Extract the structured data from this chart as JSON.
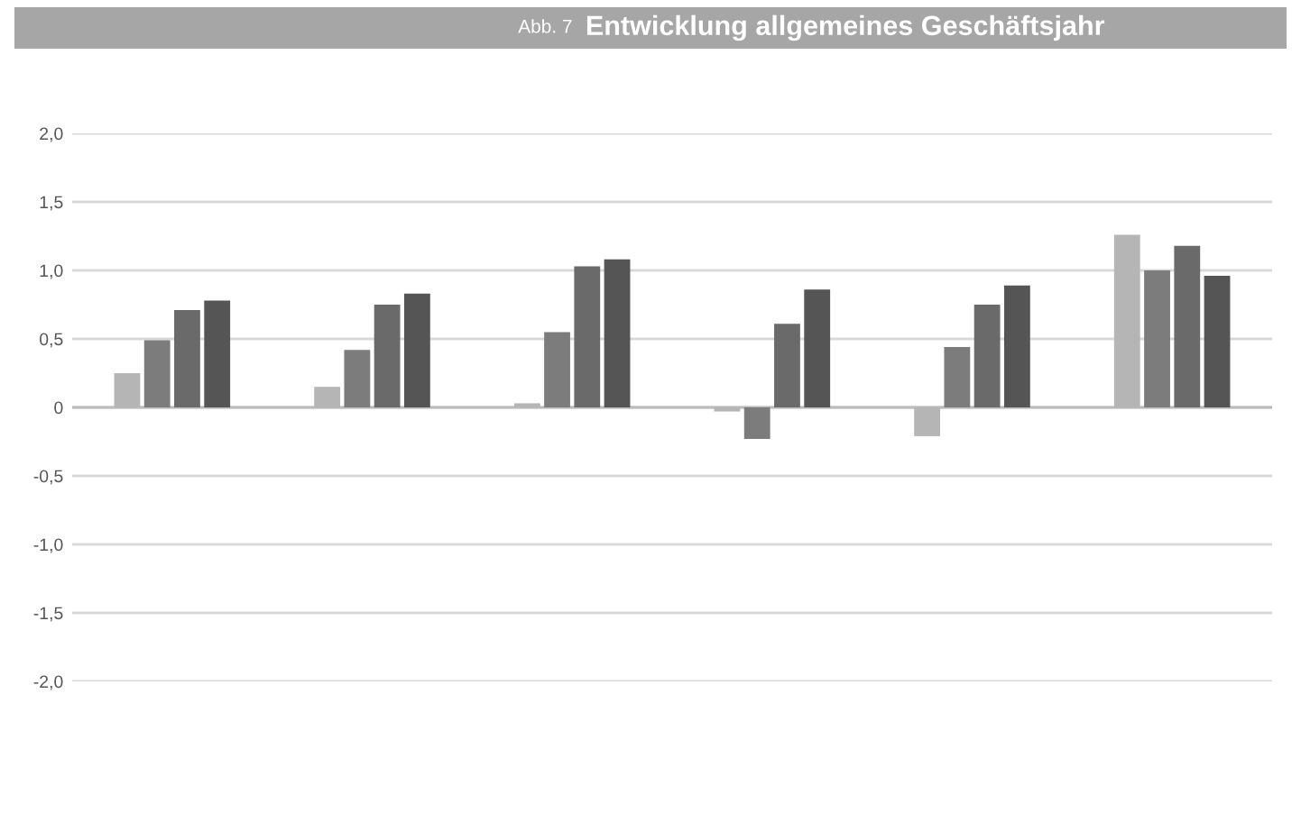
{
  "chart_data": {
    "type": "bar",
    "title": "Abb. 7",
    "subtitle": "Entwicklung allgemeines Geschäftsjahr",
    "categories": [
      null,
      null,
      null,
      null,
      null,
      null
    ],
    "series": [
      {
        "color": "#b5b5b5",
        "values": [
          0.25,
          0.15,
          0.03,
          -0.03,
          -0.21,
          1.26
        ]
      },
      {
        "color": "#7c7c7c",
        "values": [
          0.49,
          0.42,
          0.55,
          -0.23,
          0.44,
          1.0
        ]
      },
      {
        "color": "#6a6a6a",
        "values": [
          0.71,
          0.75,
          1.03,
          0.61,
          0.75,
          1.18
        ]
      },
      {
        "color": "#555555",
        "values": [
          0.78,
          0.83,
          1.08,
          0.86,
          0.89,
          0.96
        ]
      }
    ],
    "ylim": [
      -2.0,
      2.0
    ],
    "yticks": [
      {
        "value": 2.0,
        "label": "2,0"
      },
      {
        "value": 1.5,
        "label": "1,5"
      },
      {
        "value": 1.0,
        "label": "1,0"
      },
      {
        "value": 0.5,
        "label": "0,5"
      },
      0,
      {
        "value": -0.5,
        "label": "-0,5"
      },
      {
        "value": -1.0,
        "label": "-1,0"
      },
      {
        "value": -1.5,
        "label": "-1,5"
      },
      {
        "value": -2.0,
        "label": "-2,0"
      }
    ],
    "grid": "y"
  }
}
